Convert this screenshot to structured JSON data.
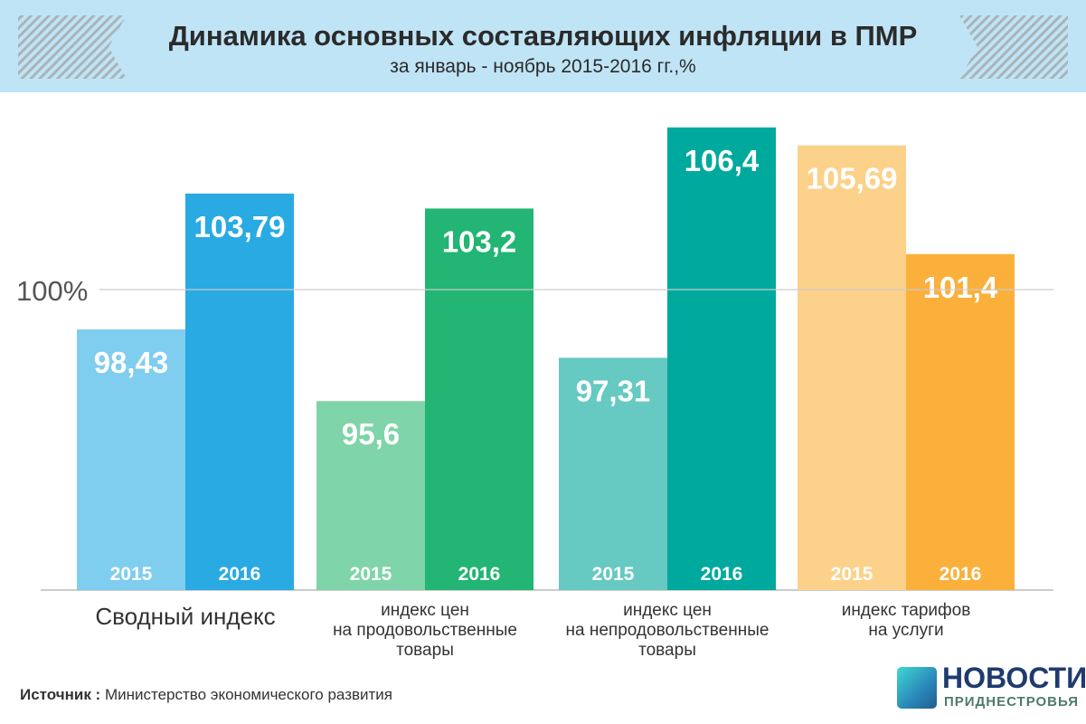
{
  "header": {
    "title": "Динамика основных составляющих инфляции в ПМР",
    "subtitle": "за январь - ноябрь 2015-2016 гг.,%"
  },
  "source": {
    "label": "Источник :",
    "text": " Министерство экономического развития"
  },
  "logo": {
    "line1": "НОВОСТИ",
    "line2": "ПРИДНЕСТРОВЬЯ"
  },
  "chart_data": {
    "type": "bar",
    "title": "Динамика основных составляющих инфляции в ПМР",
    "subtitle": "за январь - ноябрь 2015-2016 гг.,%",
    "categories": [
      [
        "Сводный индекс"
      ],
      [
        "индекс цен",
        "на продовольственные",
        "товары"
      ],
      [
        "индекс цен",
        "на непродовольственные",
        "товары"
      ],
      [
        "индекс тарифов",
        "на услуги"
      ]
    ],
    "series": [
      {
        "name": "2015",
        "values": [
          98.43,
          95.6,
          97.31,
          105.69
        ],
        "labels": [
          "98,43",
          "95,6",
          "97,31",
          "105,69"
        ]
      },
      {
        "name": "2016",
        "values": [
          103.79,
          103.2,
          106.4,
          101.4
        ],
        "labels": [
          "103,79",
          "103,2",
          "106,4",
          "101,4"
        ]
      }
    ],
    "colors": [
      [
        "#7fcdef",
        "#29aae2"
      ],
      [
        "#7fd4a9",
        "#22b573"
      ],
      [
        "#66c9c2",
        "#00a99d"
      ],
      [
        "#fcd189",
        "#fbb03b"
      ]
    ],
    "reference_line": {
      "value": 100,
      "label": "100%"
    },
    "ylim": [
      88.14,
      108.5
    ]
  }
}
